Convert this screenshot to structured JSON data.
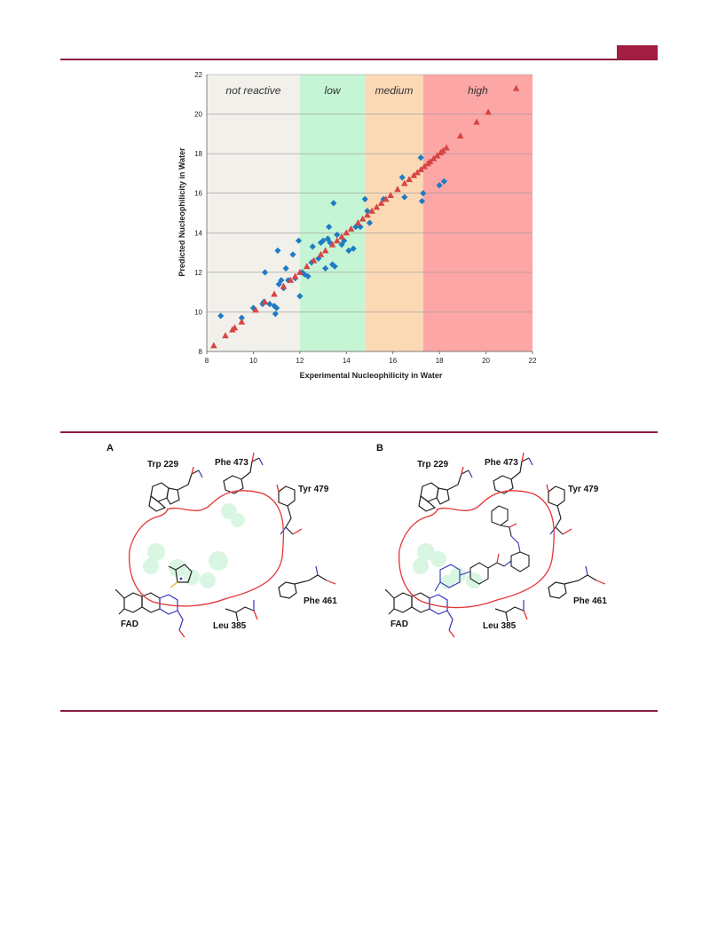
{
  "colors": {
    "accent": "#a31c44",
    "band_not_reactive": "#f2f0ea",
    "band_low": "#c6f5d5",
    "band_medium": "#fcd9b5",
    "band_high": "#fda6a6",
    "series_diamond": "#1f7bc4",
    "series_triangle": "#d64545"
  },
  "chart_data": {
    "type": "scatter",
    "title": "",
    "xlabel": "Experimental Nucleophilicity in Water",
    "ylabel": "Predicted Nucleophilicity in Water",
    "xlim": [
      8,
      22
    ],
    "ylim": [
      8,
      22
    ],
    "xticks": [
      "8",
      "10",
      "12",
      "14",
      "16",
      "18",
      "20",
      "22"
    ],
    "yticks": [
      "8",
      "10",
      "12",
      "14",
      "16",
      "18",
      "20",
      "22"
    ],
    "grid": "horizontal",
    "legend": "none",
    "regions": [
      {
        "label": "not reactive",
        "x0": 8,
        "x1": 12
      },
      {
        "label": "low",
        "x0": 12,
        "x1": 14.8
      },
      {
        "label": "medium",
        "x0": 14.8,
        "x1": 17.3
      },
      {
        "label": "high",
        "x0": 17.3,
        "x1": 22
      }
    ],
    "series": [
      {
        "marker": "diamond",
        "x": [
          8.6,
          9.5,
          10.0,
          10.4,
          10.45,
          10.5,
          10.7,
          10.9,
          10.95,
          11.0,
          11.05,
          11.1,
          11.2,
          11.3,
          11.4,
          11.5,
          11.7,
          11.8,
          11.95,
          12.0,
          12.1,
          12.2,
          12.35,
          12.5,
          12.55,
          12.8,
          12.9,
          13.0,
          13.1,
          13.2,
          13.25,
          13.3,
          13.4,
          13.45,
          13.5,
          13.6,
          13.8,
          13.9,
          14.1,
          14.3,
          14.4,
          14.6,
          14.8,
          14.9,
          15.0,
          15.6,
          16.4,
          16.5,
          17.2,
          17.25,
          17.3,
          18.0,
          18.2
        ],
        "y": [
          9.8,
          9.7,
          10.2,
          10.4,
          10.5,
          12.0,
          10.4,
          10.3,
          9.9,
          10.2,
          13.1,
          11.4,
          11.6,
          11.2,
          12.2,
          11.6,
          12.9,
          11.7,
          13.6,
          10.8,
          12.0,
          11.9,
          11.8,
          12.5,
          13.3,
          12.7,
          13.5,
          13.6,
          12.2,
          13.7,
          14.3,
          13.5,
          12.4,
          15.5,
          12.3,
          13.9,
          13.4,
          13.6,
          13.1,
          13.2,
          14.3,
          14.3,
          15.7,
          15.1,
          14.5,
          15.7,
          16.8,
          15.8,
          17.8,
          15.6,
          16.0,
          16.4,
          16.6
        ]
      },
      {
        "marker": "triangle",
        "x": [
          8.3,
          8.8,
          9.1,
          9.2,
          9.5,
          10.1,
          10.5,
          10.9,
          11.3,
          11.6,
          11.8,
          12.0,
          12.3,
          12.6,
          12.9,
          13.1,
          13.4,
          13.6,
          13.8,
          14.0,
          14.2,
          14.5,
          14.7,
          14.9,
          15.1,
          15.3,
          15.5,
          15.7,
          15.9,
          16.2,
          16.5,
          16.7,
          16.9,
          17.05,
          17.2,
          17.35,
          17.5,
          17.6,
          17.75,
          17.9,
          18.05,
          18.15,
          18.3,
          18.9,
          19.6,
          20.1,
          21.3
        ],
        "y": [
          8.3,
          8.8,
          9.1,
          9.2,
          9.5,
          10.1,
          10.5,
          10.9,
          11.3,
          11.6,
          11.8,
          12.0,
          12.3,
          12.6,
          12.9,
          13.1,
          13.4,
          13.6,
          13.8,
          14.0,
          14.2,
          14.5,
          14.7,
          14.9,
          15.1,
          15.3,
          15.5,
          15.7,
          15.9,
          16.2,
          16.5,
          16.7,
          16.9,
          17.05,
          17.2,
          17.35,
          17.5,
          17.6,
          17.75,
          17.9,
          18.05,
          18.15,
          18.3,
          18.9,
          19.6,
          20.1,
          21.3
        ]
      }
    ]
  },
  "figure": {
    "panel_a": "A",
    "panel_b": "B",
    "residues": {
      "trp229": "Trp 229",
      "phe473": "Phe 473",
      "tyr479": "Tyr 479",
      "phe461": "Phe 461",
      "leu385": "Leu 385",
      "fad": "FAD"
    }
  }
}
